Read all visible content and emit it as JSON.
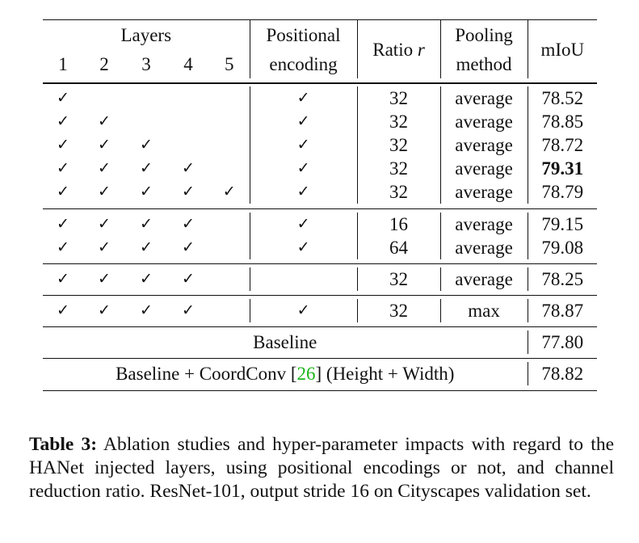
{
  "table": {
    "header": {
      "layers_label": "Layers",
      "layer_numbers": [
        "1",
        "2",
        "3",
        "4",
        "5"
      ],
      "positional_line1": "Positional",
      "positional_line2": "encoding",
      "ratio_label": "Ratio",
      "ratio_var": "r",
      "pooling_line1": "Pooling",
      "pooling_line2": "method",
      "miou_label": "mIoU"
    },
    "check_glyph": "✓",
    "groups": [
      {
        "rows": [
          {
            "layers": [
              true,
              false,
              false,
              false,
              false
            ],
            "pos": true,
            "ratio": "32",
            "pooling": "average",
            "miou": "78.52",
            "bold": false
          },
          {
            "layers": [
              true,
              true,
              false,
              false,
              false
            ],
            "pos": true,
            "ratio": "32",
            "pooling": "average",
            "miou": "78.85",
            "bold": false
          },
          {
            "layers": [
              true,
              true,
              true,
              false,
              false
            ],
            "pos": true,
            "ratio": "32",
            "pooling": "average",
            "miou": "78.72",
            "bold": false
          },
          {
            "layers": [
              true,
              true,
              true,
              true,
              false
            ],
            "pos": true,
            "ratio": "32",
            "pooling": "average",
            "miou": "79.31",
            "bold": true
          },
          {
            "layers": [
              true,
              true,
              true,
              true,
              true
            ],
            "pos": true,
            "ratio": "32",
            "pooling": "average",
            "miou": "78.79",
            "bold": false
          }
        ]
      },
      {
        "rows": [
          {
            "layers": [
              true,
              true,
              true,
              true,
              false
            ],
            "pos": true,
            "ratio": "16",
            "pooling": "average",
            "miou": "79.15",
            "bold": false
          },
          {
            "layers": [
              true,
              true,
              true,
              true,
              false
            ],
            "pos": true,
            "ratio": "64",
            "pooling": "average",
            "miou": "79.08",
            "bold": false
          }
        ]
      },
      {
        "rows": [
          {
            "layers": [
              true,
              true,
              true,
              true,
              false
            ],
            "pos": false,
            "ratio": "32",
            "pooling": "average",
            "miou": "78.25",
            "bold": false
          }
        ]
      },
      {
        "rows": [
          {
            "layers": [
              true,
              true,
              true,
              true,
              false
            ],
            "pos": true,
            "ratio": "32",
            "pooling": "max",
            "miou": "78.87",
            "bold": false
          }
        ]
      }
    ],
    "baseline": {
      "label": "Baseline",
      "miou": "77.80"
    },
    "coordconv": {
      "label_before": "Baseline + CoordConv [",
      "cite": "26",
      "label_after": "] (Height + Width)",
      "miou": "78.82"
    }
  },
  "caption": {
    "label": "Table 3:",
    "text": " Ablation studies and hyper-parameter impacts with regard to the HANet injected layers, using positional encodings or not, and channel reduction ratio. ResNet-101, output stride 16 on Cityscapes validation set."
  },
  "colors": {
    "citation": "#1bb51b",
    "text": "#111111"
  }
}
